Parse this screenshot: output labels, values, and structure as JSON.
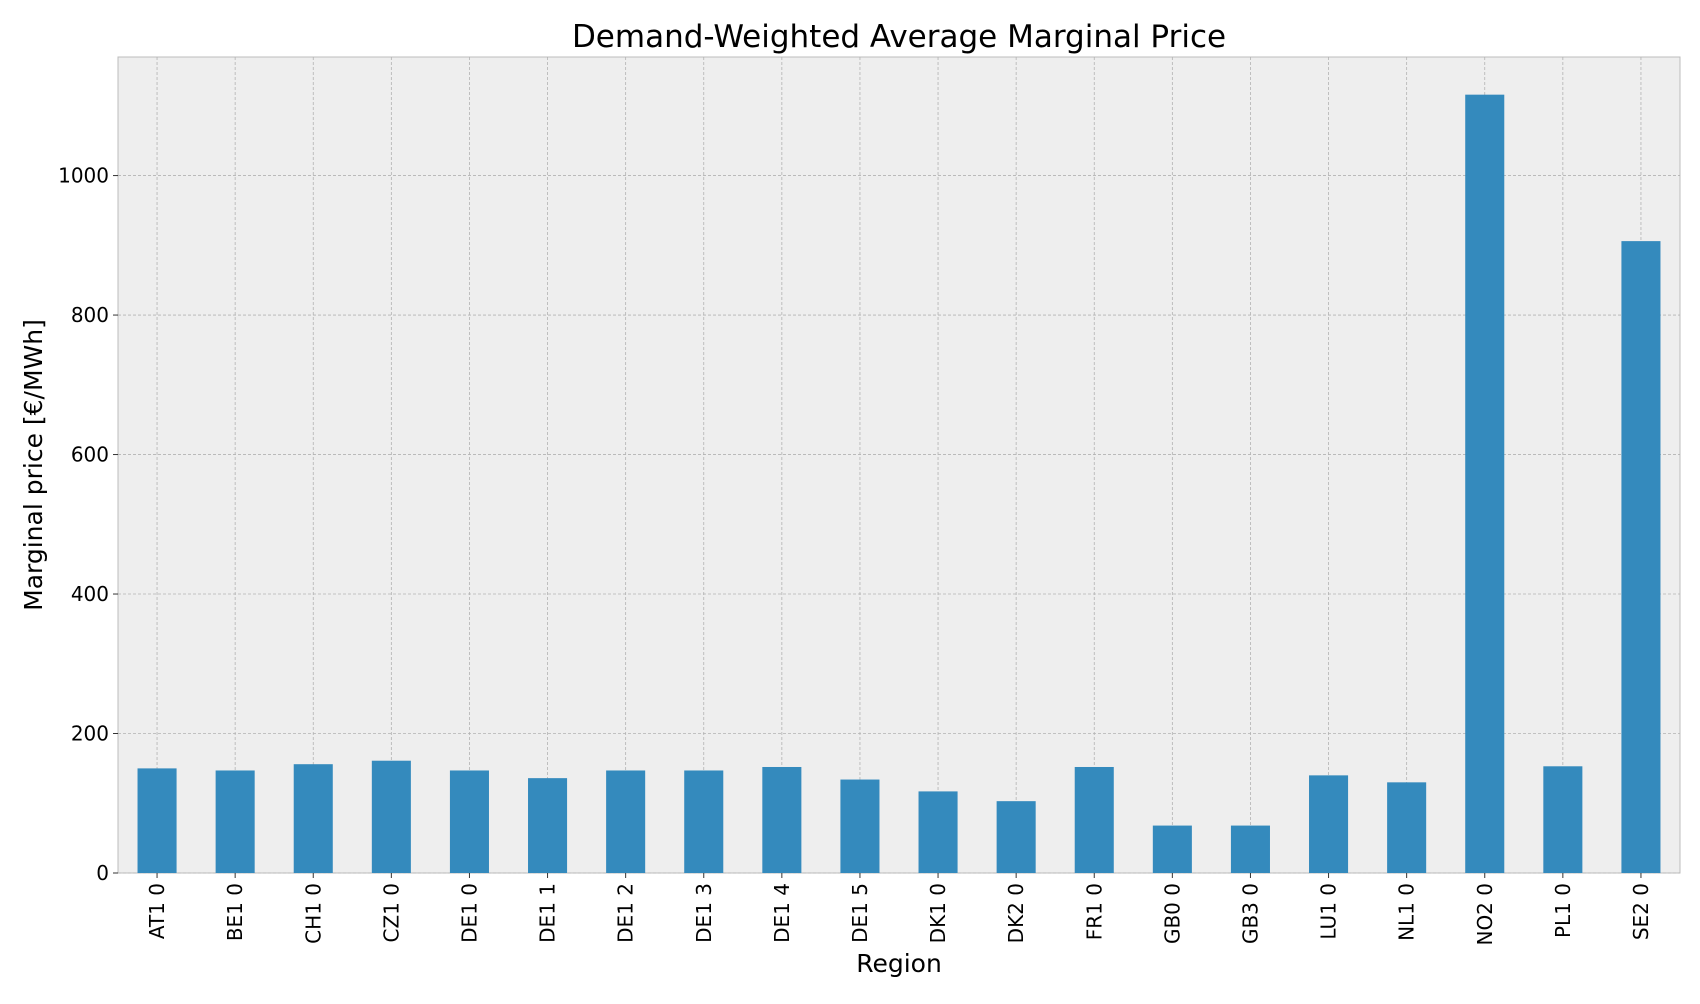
{
  "chart_data": {
    "type": "bar",
    "title": "Demand-Weighted Average Marginal Price",
    "xlabel": "Region",
    "ylabel": "Marginal price [€/MWh]",
    "categories": [
      "AT1 0",
      "BE1 0",
      "CH1 0",
      "CZ1 0",
      "DE1 0",
      "DE1 1",
      "DE1 2",
      "DE1 3",
      "DE1 4",
      "DE1 5",
      "DK1 0",
      "DK2 0",
      "FR1 0",
      "GB0 0",
      "GB3 0",
      "LU1 0",
      "NL1 0",
      "NO2 0",
      "PL1 0",
      "SE2 0"
    ],
    "values": [
      150,
      147,
      156,
      161,
      147,
      136,
      147,
      147,
      152,
      134,
      117,
      103,
      152,
      68,
      68,
      140,
      130,
      1116,
      153,
      906
    ],
    "ylim": [
      0,
      1170
    ],
    "yticks": [
      0,
      200,
      400,
      600,
      800,
      1000
    ],
    "grid": true,
    "bar_color": "#348abd",
    "plot_background": "#eeeeee",
    "grid_color": "#b2b2b2"
  }
}
